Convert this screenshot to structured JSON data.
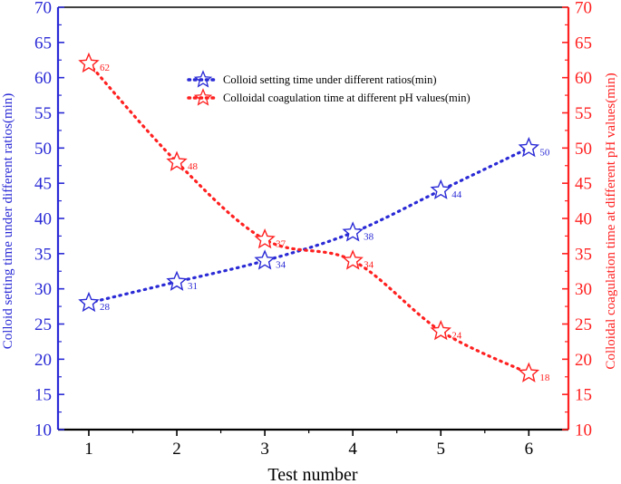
{
  "chart_data": {
    "type": "line",
    "xlabel": "Test number",
    "ylabel_left": "Colloid setting time under different ratios(min)",
    "ylabel_right": "Colloidal coagulation time at different pH values(min)",
    "xlim": [
      0.65,
      6.45
    ],
    "ylim_left": [
      10,
      70
    ],
    "ylim_right": [
      10,
      70
    ],
    "x_ticks": [
      1,
      2,
      3,
      4,
      5,
      6
    ],
    "y_ticks": [
      10,
      15,
      20,
      25,
      30,
      35,
      40,
      45,
      50,
      55,
      60,
      65,
      70
    ],
    "grid": false,
    "legend_position": "upper-center",
    "series": [
      {
        "name": "Colloid setting time under different ratios(min)",
        "axis": "left",
        "color": "#2a2ad6",
        "marker": "star",
        "line_style": "dotted",
        "x": [
          1,
          2,
          3,
          4,
          5,
          6
        ],
        "values": [
          28,
          31,
          34,
          38,
          44,
          50
        ],
        "labels": [
          "28",
          "31",
          "34",
          "38",
          "44",
          "50"
        ]
      },
      {
        "name": "Colloidal coagulation time at different pH values(min)",
        "axis": "right",
        "color": "#ff2020",
        "marker": "star",
        "line_style": "dotted",
        "x": [
          1,
          2,
          3,
          4,
          5,
          6
        ],
        "values": [
          62,
          48,
          37,
          34,
          24,
          18
        ],
        "labels": [
          "62",
          "48",
          "37",
          "34",
          "24",
          "18"
        ]
      }
    ]
  }
}
